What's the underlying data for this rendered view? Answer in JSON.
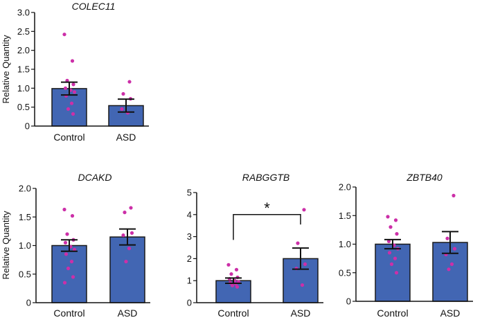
{
  "colors": {
    "bar": "#4266b3",
    "bar_stroke": "#1a1a1a",
    "point": "#cc2fa8",
    "axis": "#111111"
  },
  "chart_data": [
    {
      "type": "bar",
      "title": "COLEC11",
      "ylabel": "Relative Quantity",
      "xlabel": "",
      "categories": [
        "Control",
        "ASD"
      ],
      "values": [
        0.99,
        0.54
      ],
      "sem": [
        0.17,
        0.17
      ],
      "ylim": [
        0,
        3.0
      ],
      "yticks": [
        "0",
        "0.5",
        "1.0",
        "1.5",
        "2.0",
        "2.5",
        "3.0"
      ],
      "points": [
        [
          2.42,
          1.72,
          1.2,
          1.1,
          1.0,
          0.95,
          0.9,
          0.8,
          0.6,
          0.45,
          0.32
        ],
        [
          1.17,
          0.85,
          0.72,
          0.45,
          0.35
        ]
      ],
      "significance": null
    },
    {
      "type": "bar",
      "title": "DCAKD",
      "ylabel": "Relative Quantity",
      "xlabel": "",
      "categories": [
        "Control",
        "ASD"
      ],
      "values": [
        1.0,
        1.15
      ],
      "sem": [
        0.1,
        0.14
      ],
      "ylim": [
        0,
        2.0
      ],
      "yticks": [
        "0",
        "0.5",
        "1.0",
        "1.5",
        "2.0"
      ],
      "points": [
        [
          1.63,
          1.52,
          1.2,
          1.1,
          1.05,
          0.98,
          0.93,
          0.85,
          0.72,
          0.6,
          0.45,
          0.35
        ],
        [
          1.66,
          1.58,
          1.22,
          1.18,
          0.95,
          0.72
        ]
      ],
      "significance": null
    },
    {
      "type": "bar",
      "title": "RABGGTB",
      "ylabel": "",
      "xlabel": "",
      "categories": [
        "Control",
        "ASD"
      ],
      "values": [
        1.0,
        2.0
      ],
      "sem": [
        0.12,
        0.48
      ],
      "ylim": [
        0,
        5
      ],
      "yticks": [
        "0",
        "1",
        "2",
        "3",
        "4",
        "5"
      ],
      "points": [
        [
          1.72,
          1.5,
          1.3,
          1.15,
          1.08,
          1.0,
          0.95,
          0.9,
          0.85,
          0.78,
          0.72
        ],
        [
          4.22,
          2.7,
          1.75,
          1.55,
          0.8
        ]
      ],
      "significance": "*"
    },
    {
      "type": "bar",
      "title": "ZBTB40",
      "ylabel": "",
      "xlabel": "",
      "categories": [
        "Control",
        "ASD"
      ],
      "values": [
        1.0,
        1.03
      ],
      "sem": [
        0.08,
        0.19
      ],
      "ylim": [
        0,
        2.0
      ],
      "yticks": [
        "0",
        "0.5",
        "1.0",
        "1.5",
        "2.0"
      ],
      "points": [
        [
          1.48,
          1.42,
          1.3,
          1.18,
          1.05,
          0.98,
          0.92,
          0.85,
          0.75,
          0.65,
          0.5
        ],
        [
          1.85,
          1.1,
          0.92,
          0.82,
          0.65,
          0.56
        ]
      ],
      "significance": null
    }
  ]
}
